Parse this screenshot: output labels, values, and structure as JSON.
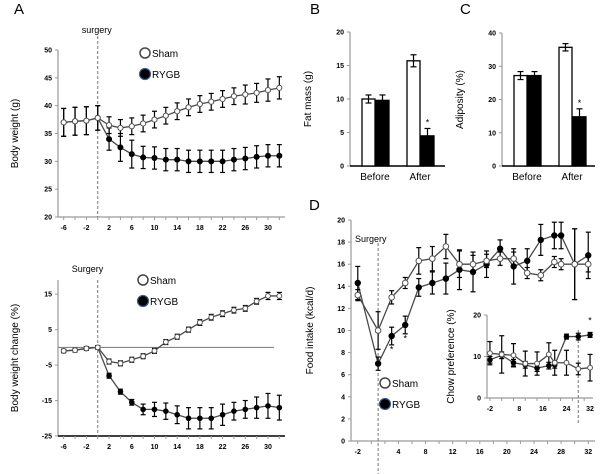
{
  "chart_data": [
    {
      "id": "A_top",
      "panel_label": "A",
      "type": "line",
      "title": "",
      "annotation": "surgery",
      "annotation_x": 0,
      "xlabel": "",
      "ylabel": "Body weight (g)",
      "xlim": [
        -7,
        33
      ],
      "ylim": [
        20,
        50
      ],
      "xticks": [
        -6,
        -2,
        2,
        6,
        10,
        14,
        18,
        22,
        26,
        30
      ],
      "yticks": [
        20,
        25,
        30,
        35,
        40,
        45,
        50
      ],
      "legend": [
        "Sham",
        "RYGB"
      ],
      "legend_position": "top-center",
      "x": [
        -6,
        -4,
        -2,
        0,
        2,
        4,
        6,
        8,
        10,
        12,
        14,
        16,
        18,
        20,
        22,
        24,
        26,
        28,
        30,
        32
      ],
      "series": [
        {
          "name": "Sham",
          "marker": "open",
          "values": [
            37,
            37.2,
            37.3,
            37.8,
            36.5,
            36,
            36.3,
            36.8,
            37.5,
            38.2,
            39,
            39.7,
            40.3,
            40.7,
            41.2,
            41.7,
            42,
            42.3,
            42.8,
            43.2
          ],
          "error": [
            2.5,
            2.5,
            2.5,
            2.2,
            1.5,
            1.5,
            1.5,
            1.5,
            1.5,
            1.5,
            1.5,
            1.5,
            1.5,
            1.5,
            1.5,
            1.5,
            1.7,
            1.7,
            2,
            2
          ]
        },
        {
          "name": "RYGB",
          "marker": "filled",
          "values": [
            37,
            37.2,
            37.3,
            37.8,
            34,
            32.5,
            31.3,
            30.7,
            30.6,
            30.3,
            30.3,
            30,
            30,
            30,
            30,
            30.3,
            30.5,
            30.8,
            31,
            31
          ],
          "error": [
            2.5,
            2.5,
            2.5,
            2.2,
            2,
            2.5,
            2.5,
            2,
            2,
            2,
            2,
            2,
            2,
            2,
            2,
            2,
            2,
            2,
            2,
            2
          ]
        }
      ]
    },
    {
      "id": "A_bottom",
      "panel_label": "",
      "type": "line",
      "title": "",
      "annotation": "Surgery",
      "annotation_x": 0,
      "xlabel": "",
      "ylabel": "Body weight change (%)",
      "xlim": [
        -7,
        33
      ],
      "ylim": [
        -25,
        19
      ],
      "xticks": [
        -6,
        -2,
        2,
        6,
        10,
        14,
        18,
        22,
        26,
        30
      ],
      "yticks": [
        -25,
        -15,
        -5,
        5,
        15
      ],
      "reference_line_y": 0,
      "legend": [
        "Sham",
        "RYGB"
      ],
      "legend_position": "top-center",
      "x": [
        -6,
        -4,
        -2,
        0,
        2,
        4,
        6,
        8,
        10,
        12,
        14,
        16,
        18,
        20,
        22,
        24,
        26,
        28,
        30,
        32
      ],
      "series": [
        {
          "name": "Sham",
          "marker": "open",
          "values": [
            -1,
            -0.8,
            -0.3,
            0,
            -4,
            -4.5,
            -3.5,
            -2.5,
            -1,
            1.5,
            3,
            5,
            7,
            8.5,
            9.5,
            10.5,
            11,
            13,
            14.5,
            14.5
          ],
          "error": [
            0.5,
            0.5,
            0.5,
            0.5,
            0.7,
            0.7,
            0.7,
            0.7,
            0.7,
            0.7,
            0.7,
            0.7,
            0.8,
            0.8,
            0.8,
            0.8,
            0.8,
            0.8,
            1,
            1
          ]
        },
        {
          "name": "RYGB",
          "marker": "filled",
          "values": [
            -1,
            -0.8,
            -0.3,
            0,
            -8,
            -12.5,
            -15.5,
            -17.5,
            -17.5,
            -18,
            -19,
            -20,
            -20,
            -20,
            -19,
            -18,
            -17.5,
            -17,
            -16.5,
            -17
          ],
          "error": [
            0.5,
            0.5,
            0.5,
            0.5,
            0.7,
            0.7,
            0.8,
            1.5,
            2,
            2.3,
            2.5,
            3,
            3,
            3,
            3,
            2.5,
            2.5,
            3,
            3.5,
            3.5
          ]
        }
      ]
    },
    {
      "id": "B",
      "panel_label": "B",
      "type": "bar",
      "title": "",
      "xlabel": "",
      "ylabel": "Fat mass (g)",
      "ylim": [
        0,
        20
      ],
      "yticks": [
        0,
        5,
        10,
        15,
        20
      ],
      "categories": [
        "Before",
        "After"
      ],
      "series": [
        {
          "name": "Sham",
          "fill": "white",
          "values": [
            10,
            15.7
          ],
          "error": [
            0.6,
            0.9
          ]
        },
        {
          "name": "RYGB",
          "fill": "black",
          "values": [
            9.8,
            4.5
          ],
          "error": [
            0.8,
            1.1
          ]
        }
      ],
      "significance": [
        {
          "category": "After",
          "series": "RYGB",
          "mark": "*"
        }
      ]
    },
    {
      "id": "C",
      "panel_label": "C",
      "type": "bar",
      "title": "",
      "xlabel": "",
      "ylabel": "Adiposity (%)",
      "ylim": [
        0,
        40
      ],
      "yticks": [
        0,
        10,
        20,
        30,
        40
      ],
      "categories": [
        "Before",
        "After"
      ],
      "series": [
        {
          "name": "Sham",
          "fill": "white",
          "values": [
            27.2,
            35.7
          ],
          "error": [
            1.2,
            1.1
          ]
        },
        {
          "name": "RYGB",
          "fill": "black",
          "values": [
            27.2,
            14.8
          ],
          "error": [
            1.2,
            2.4
          ]
        }
      ],
      "significance": [
        {
          "category": "After",
          "series": "RYGB",
          "mark": "*"
        }
      ]
    },
    {
      "id": "D",
      "panel_label": "D",
      "type": "line",
      "title": "",
      "annotation": "Surgery",
      "annotation_x": 1,
      "xlabel": "",
      "ylabel": "Food intake (kcal/d)",
      "xlim": [
        -3,
        33
      ],
      "ylim": [
        0,
        20
      ],
      "xticks": [
        -2,
        4,
        8,
        12,
        16,
        20,
        24,
        28,
        32
      ],
      "yticks": [
        0,
        2,
        4,
        6,
        8,
        10,
        12,
        14,
        16,
        18,
        20
      ],
      "legend": [
        "Sham",
        "RYGB"
      ],
      "legend_position": "bottom-left",
      "x": [
        -2,
        1,
        3,
        5,
        7,
        9,
        11,
        13,
        15,
        17,
        19,
        21,
        23,
        25,
        27,
        28,
        30,
        32
      ],
      "series": [
        {
          "name": "Sham",
          "marker": "open",
          "values": [
            13.2,
            10,
            13,
            14.3,
            16.3,
            16.5,
            17.6,
            16,
            16,
            16.3,
            16.5,
            16.5,
            15.2,
            15,
            16.2,
            16,
            16,
            16
          ],
          "error": [
            0.5,
            1.7,
            0.6,
            0.5,
            1.2,
            1.1,
            1.1,
            1.2,
            0.8,
            0.6,
            0.6,
            0.6,
            0.5,
            0.5,
            0.5,
            0.5,
            3.2,
            0.7
          ]
        },
        {
          "name": "RYGB",
          "marker": "filled",
          "values": [
            14.3,
            7,
            9.5,
            10.5,
            13.9,
            14.3,
            14.7,
            15.5,
            15.3,
            16,
            17.4,
            15.8,
            16.3,
            18.2,
            18.6,
            18.6,
            16,
            16.8
          ],
          "error": [
            1.5,
            0.6,
            0.8,
            0.8,
            0.8,
            1,
            1.4,
            1.8,
            1.8,
            1.2,
            0.8,
            1.6,
            1.1,
            1.4,
            1.2,
            1.2,
            3.2,
            2.1
          ]
        }
      ],
      "significance_marks": [
        {
          "x": 3,
          "y": 8,
          "mark": "*"
        },
        {
          "x": 5,
          "y": 9,
          "mark": "*"
        }
      ]
    },
    {
      "id": "D_inset",
      "panel_label": "",
      "type": "line",
      "title": "",
      "xlabel": "",
      "ylabel": "Chow preference (%)",
      "xlim": [
        -3,
        33
      ],
      "ylim": [
        0,
        20
      ],
      "xticks": [
        -2,
        8,
        16,
        24,
        32
      ],
      "yticks": [
        0,
        10,
        20
      ],
      "vertical_marker_x": 28,
      "x": [
        -2,
        2,
        6,
        10,
        14,
        18,
        20,
        24,
        28,
        32
      ],
      "series": [
        {
          "name": "Sham",
          "marker": "open",
          "values": [
            10.8,
            10.5,
            10.3,
            8.3,
            8.3,
            10.5,
            8.5,
            8.5,
            7,
            7.3
          ],
          "error": [
            2.8,
            4.5,
            2.8,
            3,
            2.8,
            2.8,
            3,
            3,
            1.4,
            3.2
          ]
        },
        {
          "name": "RYGB",
          "marker": "filled",
          "values": [
            9.2,
            10.3,
            8.5,
            8,
            7.2,
            7.8,
            8,
            14.8,
            14.8,
            15.2
          ],
          "error": [
            0.8,
            0.8,
            0.8,
            0.8,
            0.8,
            0.8,
            0.8,
            0.6,
            0.8,
            0.6
          ]
        }
      ],
      "significance_marks": [
        {
          "x": 32,
          "y": 18,
          "mark": "*"
        }
      ]
    }
  ],
  "legend_labels": {
    "sham": "Sham",
    "rygb": "RYGB"
  },
  "colors": {
    "axis": "#9a9a9a",
    "line": "#4a4a4a",
    "filled": "#000000",
    "open_fill": "#ffffff",
    "dash": "#777777"
  }
}
